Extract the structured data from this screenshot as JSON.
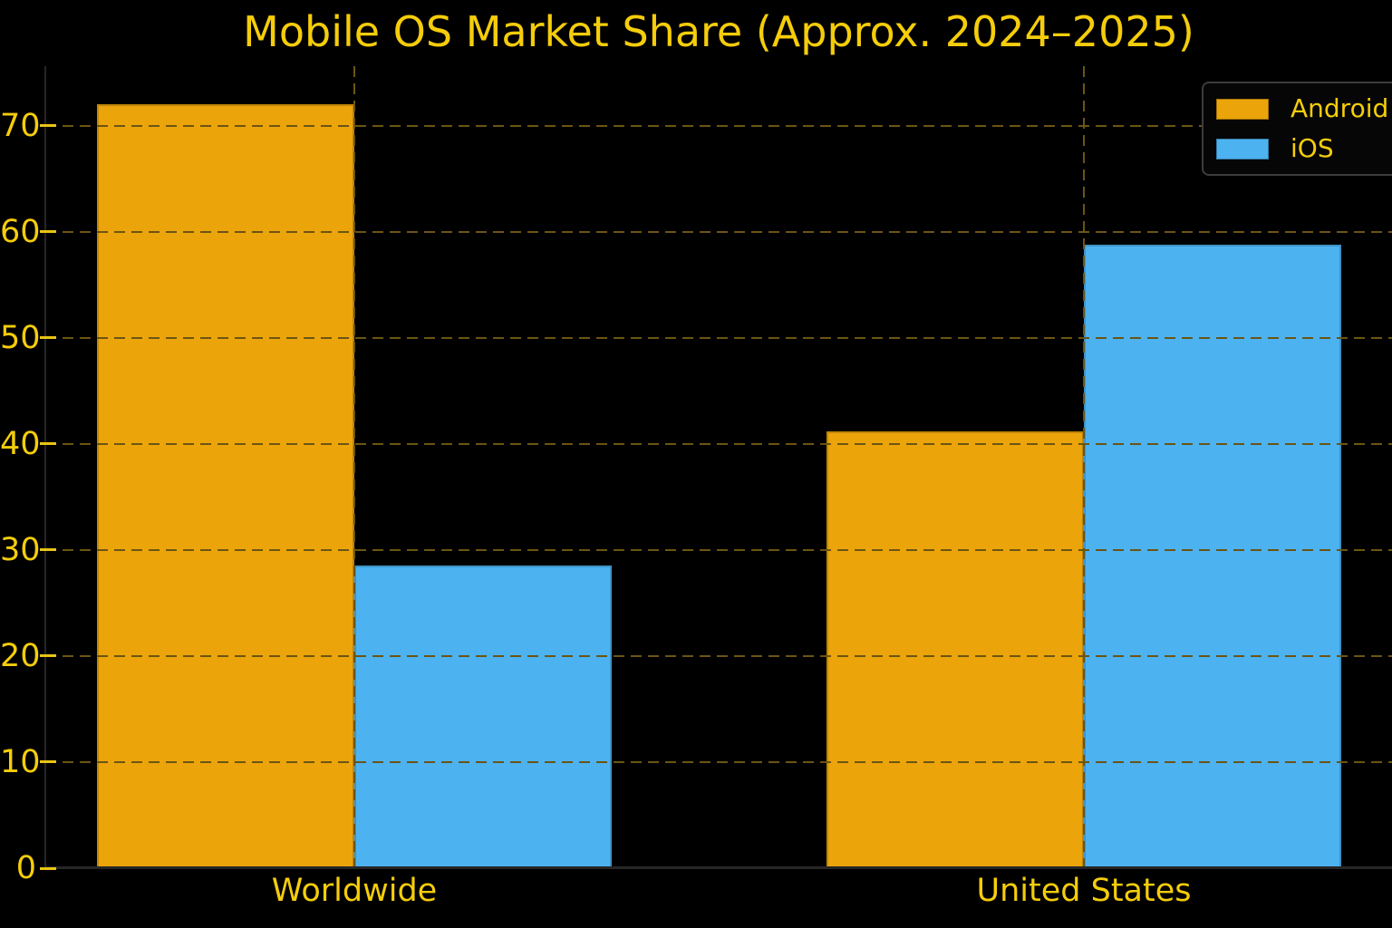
{
  "chart_data": {
    "type": "bar",
    "title": "Mobile OS Market Share (Approx. 2024–2025)",
    "categories": [
      "Worldwide",
      "United States"
    ],
    "series": [
      {
        "name": "Android",
        "color": "#EBA40A",
        "values": [
          72,
          41.2
        ]
      },
      {
        "name": "iOS",
        "color": "#4DB2F0",
        "values": [
          28.5,
          58.8
        ]
      }
    ],
    "xlabel": "",
    "ylabel": "",
    "ylim": [
      0,
      75.6
    ],
    "yticks": [
      0,
      10,
      20,
      30,
      40,
      50,
      60,
      70
    ],
    "grid": "dashed, horizontal and vertical, drawn above bars",
    "legend_position": "upper-right",
    "style": {
      "background": "#000000",
      "text_color": "#F5CD0A",
      "tick_color": "#E8C414",
      "grid_color": "#6B5513",
      "spine_color": "#262626",
      "legend_border_color": "#3C3C3C"
    }
  }
}
